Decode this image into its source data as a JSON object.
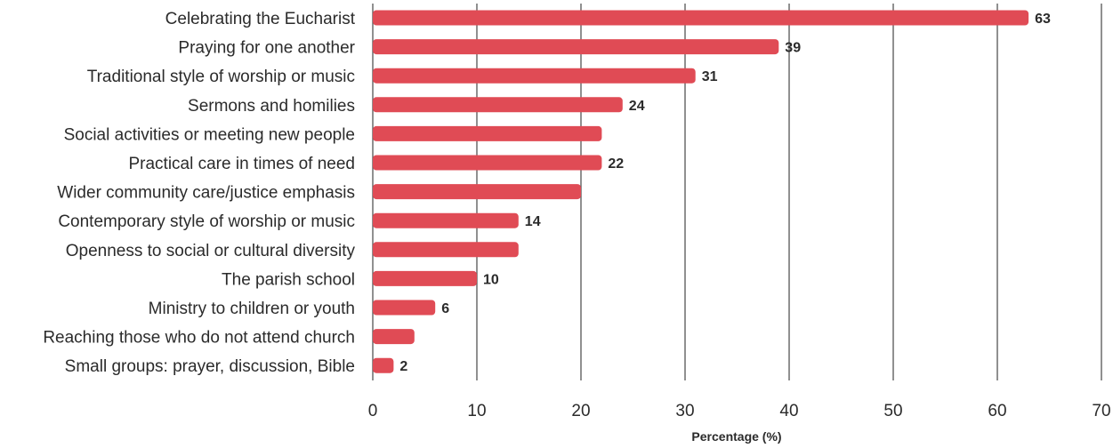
{
  "chart_data": {
    "type": "bar",
    "orientation": "horizontal",
    "categories": [
      "Celebrating the Eucharist",
      "Praying for one another",
      "Traditional style of worship or music",
      "Sermons and homilies",
      "Social activities or meeting new people",
      "Practical care in times of need",
      "Wider community care/justice emphasis",
      "Contemporary style of worship or music",
      "Openness to social or cultural diversity",
      "The parish school",
      "Ministry to children or youth",
      "Reaching those who do not attend church",
      "Small groups: prayer, discussion, Bible"
    ],
    "values": [
      63,
      39,
      31,
      24,
      22,
      22,
      20,
      14,
      14,
      10,
      6,
      4,
      2
    ],
    "data_labels": [
      "63",
      "39",
      "31",
      "24",
      "",
      "22",
      "",
      "14",
      "",
      "10",
      "6",
      "",
      "2"
    ],
    "xlabel": "Percentage (%)",
    "ylabel": "",
    "xlim": [
      0,
      70
    ],
    "xticks": [
      "0",
      "10",
      "20",
      "30",
      "40",
      "50",
      "60",
      "70"
    ],
    "grid": "vertical",
    "bar_color": "#e04b55"
  }
}
